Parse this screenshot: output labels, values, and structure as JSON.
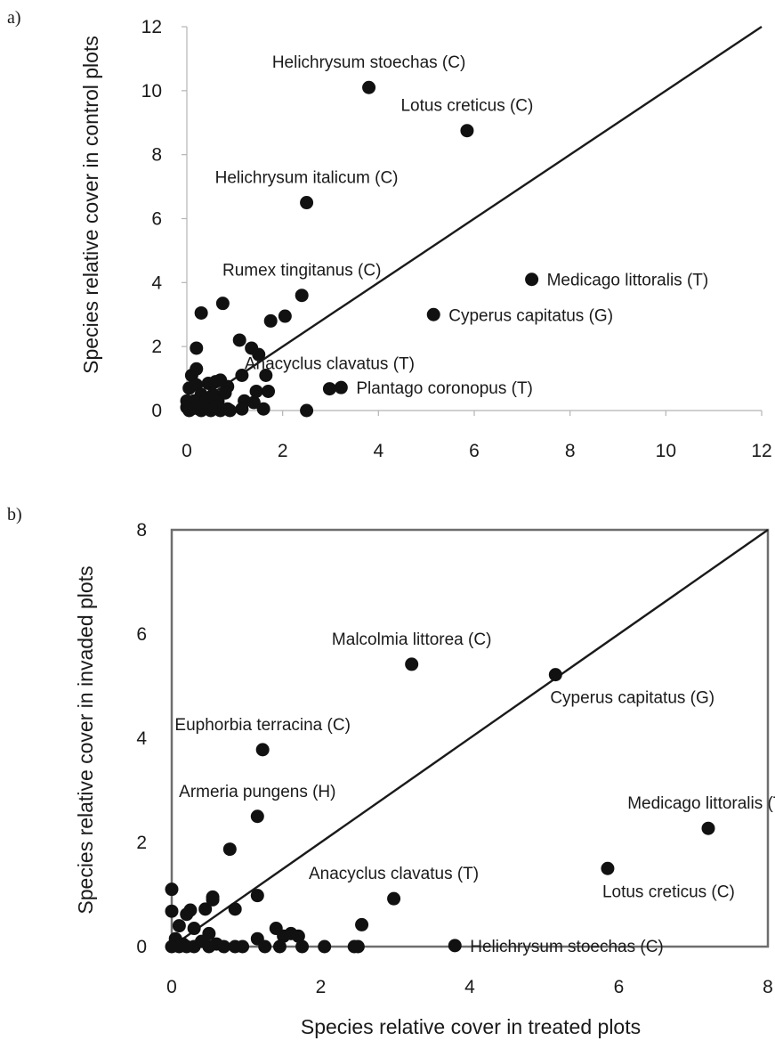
{
  "figure": {
    "xlabel_shared": "Species relative cover in treated plots"
  },
  "chart_data": [
    {
      "panel": "a)",
      "type": "scatter",
      "ylabel": "Species relative cover in control plots",
      "xlabel": "",
      "xlim": [
        0,
        12
      ],
      "ylim": [
        0,
        12
      ],
      "xticks": [
        0,
        2,
        4,
        6,
        8,
        10,
        12
      ],
      "yticks": [
        0,
        2,
        4,
        6,
        8,
        10,
        12
      ],
      "frame": "open",
      "reference_line": {
        "from": [
          0,
          0
        ],
        "to": [
          12,
          12
        ]
      },
      "annotations": [
        {
          "text": "Helichrysum stoechas (C)",
          "x": 3.8,
          "y": 10.1,
          "anchor": "above"
        },
        {
          "text": "Lotus creticus (C)",
          "x": 5.85,
          "y": 8.75,
          "anchor": "above"
        },
        {
          "text": "Helichrysum italicum (C)",
          "x": 2.5,
          "y": 6.5,
          "anchor": "above"
        },
        {
          "text": "Rumex tingitanus (C)",
          "x": 2.4,
          "y": 3.6,
          "anchor": "above"
        },
        {
          "text": "Medicago littoralis (T)",
          "x": 7.2,
          "y": 4.1,
          "anchor": "right"
        },
        {
          "text": "Cyperus capitatus (G)",
          "x": 5.15,
          "y": 3.0,
          "anchor": "right"
        },
        {
          "text": "Anacyclus clavatus (T)",
          "x": 2.98,
          "y": 0.68,
          "anchor": "above"
        },
        {
          "text": "Plantago coronopus (T)",
          "x": 3.22,
          "y": 0.72,
          "anchor": "right"
        }
      ],
      "points": [
        [
          3.8,
          10.1
        ],
        [
          5.85,
          8.75
        ],
        [
          2.5,
          6.5
        ],
        [
          2.4,
          3.6
        ],
        [
          7.2,
          4.1
        ],
        [
          5.15,
          3.0
        ],
        [
          2.98,
          0.68
        ],
        [
          3.22,
          0.72
        ],
        [
          2.5,
          0.0
        ],
        [
          0.3,
          3.05
        ],
        [
          0.75,
          3.35
        ],
        [
          1.75,
          2.8
        ],
        [
          2.05,
          2.95
        ],
        [
          0.2,
          1.95
        ],
        [
          1.1,
          2.2
        ],
        [
          1.35,
          1.95
        ],
        [
          1.5,
          1.75
        ],
        [
          0.1,
          1.1
        ],
        [
          0.2,
          1.3
        ],
        [
          1.15,
          1.1
        ],
        [
          1.65,
          1.1
        ],
        [
          0.05,
          0.7
        ],
        [
          0.2,
          0.8
        ],
        [
          0.45,
          0.85
        ],
        [
          0.7,
          0.95
        ],
        [
          0.85,
          0.75
        ],
        [
          0.6,
          0.9
        ],
        [
          1.45,
          0.6
        ],
        [
          1.7,
          0.6
        ],
        [
          0.3,
          0.5
        ],
        [
          0.55,
          0.5
        ],
        [
          0.8,
          0.55
        ],
        [
          0.0,
          0.3
        ],
        [
          0.15,
          0.3
        ],
        [
          0.4,
          0.3
        ],
        [
          0.65,
          0.3
        ],
        [
          1.2,
          0.3
        ],
        [
          0.0,
          0.1
        ],
        [
          0.1,
          0.05
        ],
        [
          0.25,
          0.05
        ],
        [
          0.35,
          0.1
        ],
        [
          0.5,
          0.05
        ],
        [
          0.6,
          0.1
        ],
        [
          0.7,
          0.0
        ],
        [
          0.85,
          0.05
        ],
        [
          1.15,
          0.05
        ],
        [
          1.6,
          0.05
        ],
        [
          0.05,
          0.0
        ],
        [
          0.3,
          0.0
        ],
        [
          0.5,
          0.0
        ],
        [
          0.9,
          0.0
        ],
        [
          1.4,
          0.25
        ]
      ]
    },
    {
      "panel": "b)",
      "type": "scatter",
      "ylabel": "Species relative cover in invaded plots",
      "xlabel": "Species relative cover in treated plots",
      "xlim": [
        0,
        8
      ],
      "ylim": [
        0,
        8
      ],
      "xticks": [
        0,
        2,
        4,
        6,
        8
      ],
      "yticks": [
        0,
        2,
        4,
        6,
        8
      ],
      "frame": "box",
      "reference_line": {
        "from": [
          0,
          0
        ],
        "to": [
          8,
          8
        ]
      },
      "annotations": [
        {
          "text": "Malcolmia littorea (C)",
          "x": 3.22,
          "y": 5.42,
          "anchor": "above"
        },
        {
          "text": "Cyperus capitatus (G)",
          "x": 5.15,
          "y": 5.22,
          "anchor": "below-right"
        },
        {
          "text": "Euphorbia terracina (C)",
          "x": 1.22,
          "y": 3.78,
          "anchor": "above"
        },
        {
          "text": "Armeria pungens (H)",
          "x": 1.15,
          "y": 2.5,
          "anchor": "above"
        },
        {
          "text": "Medicago littoralis (T)",
          "x": 7.2,
          "y": 2.27,
          "anchor": "above"
        },
        {
          "text": "Lotus creticus (C)",
          "x": 5.85,
          "y": 1.5,
          "anchor": "below-right"
        },
        {
          "text": "Anacyclus clavatus (T)",
          "x": 2.98,
          "y": 0.92,
          "anchor": "above"
        },
        {
          "text": "Helichrysum stoechas (C)",
          "x": 3.8,
          "y": 0.02,
          "anchor": "right"
        }
      ],
      "points": [
        [
          3.22,
          5.42
        ],
        [
          5.15,
          5.22
        ],
        [
          1.22,
          3.78
        ],
        [
          1.15,
          2.5
        ],
        [
          7.2,
          2.27
        ],
        [
          5.85,
          1.5
        ],
        [
          2.98,
          0.92
        ],
        [
          3.8,
          0.02
        ],
        [
          0.78,
          1.87
        ],
        [
          0.0,
          1.1
        ],
        [
          0.0,
          0.68
        ],
        [
          0.2,
          0.62
        ],
        [
          0.45,
          0.72
        ],
        [
          0.55,
          0.95
        ],
        [
          0.55,
          0.9
        ],
        [
          0.85,
          0.72
        ],
        [
          1.15,
          0.98
        ],
        [
          0.1,
          0.4
        ],
        [
          0.3,
          0.35
        ],
        [
          0.5,
          0.25
        ],
        [
          0.25,
          0.7
        ],
        [
          0.05,
          0.15
        ],
        [
          0.15,
          0.05
        ],
        [
          0.3,
          0.0
        ],
        [
          0.4,
          0.1
        ],
        [
          0.6,
          0.05
        ],
        [
          0.7,
          0.0
        ],
        [
          0.85,
          0.0
        ],
        [
          0.95,
          0.0
        ],
        [
          1.15,
          0.15
        ],
        [
          1.4,
          0.35
        ],
        [
          1.5,
          0.2
        ],
        [
          1.6,
          0.25
        ],
        [
          1.7,
          0.2
        ],
        [
          1.45,
          0.0
        ],
        [
          1.75,
          0.0
        ],
        [
          2.05,
          0.0
        ],
        [
          2.45,
          0.0
        ],
        [
          2.55,
          0.42
        ],
        [
          0.0,
          0.0
        ],
        [
          0.1,
          0.0
        ],
        [
          0.2,
          0.0
        ],
        [
          0.5,
          0.0
        ],
        [
          1.25,
          0.0
        ],
        [
          2.5,
          0.0
        ]
      ]
    }
  ]
}
